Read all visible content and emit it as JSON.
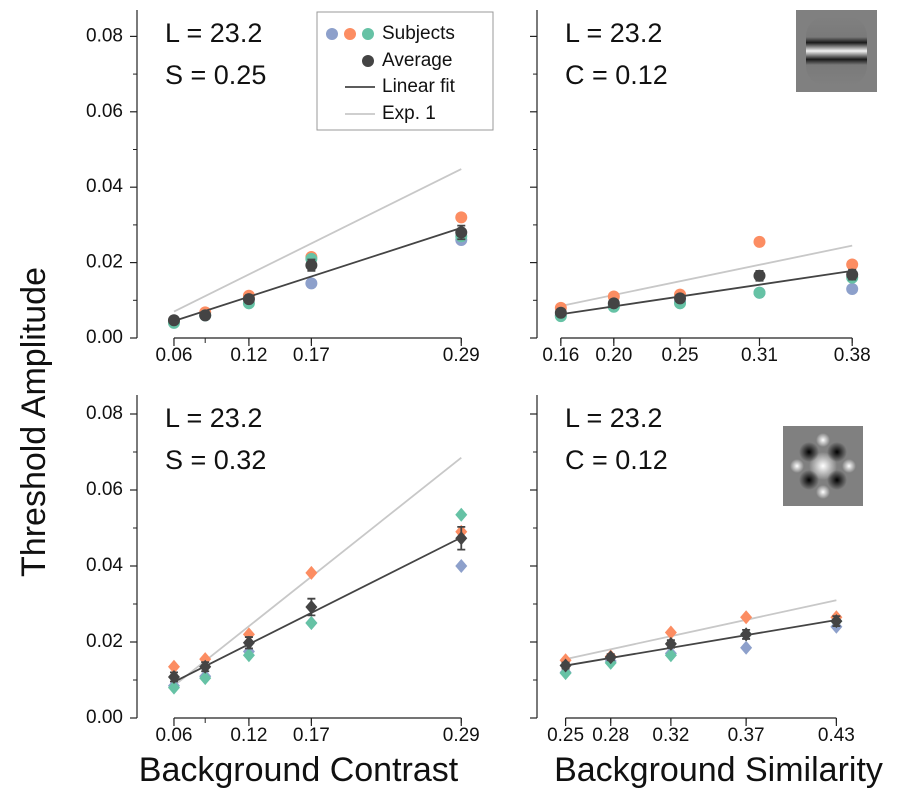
{
  "chart_data": [
    {
      "type": "scatter",
      "marker": "circle",
      "annotations": [
        "L = 23.2",
        "S = 0.25"
      ],
      "y_label": "Threshold Amplitude",
      "x": [
        0.06,
        0.085,
        0.12,
        0.17,
        0.29
      ],
      "xlim": [
        0.0304,
        0.313
      ],
      "xticks": [
        0.06,
        0.12,
        0.17,
        0.29
      ],
      "ylim": [
        0,
        0.087
      ],
      "yticks": [
        {
          "value": 0,
          "label": "0.00"
        },
        0.02,
        0.04,
        0.06,
        0.08
      ],
      "ytick_labels": true,
      "series": [
        {
          "name": "Subjects",
          "color": "#8da0cb",
          "values": [
            0.0045,
            0.006,
            0.0105,
            0.0145,
            0.026
          ]
        },
        {
          "color": "#fc8d62",
          "values": [
            0.0045,
            0.0068,
            0.0112,
            0.0215,
            0.032
          ]
        },
        {
          "color": "#66c2a5",
          "values": [
            0.004,
            0.006,
            0.0092,
            0.021,
            0.027
          ]
        },
        {
          "name": "Average",
          "color": "#444444",
          "values": [
            0.0047,
            0.006,
            0.0103,
            0.0193,
            0.028
          ],
          "errors": [
            0.0006,
            0.0006,
            0.0008,
            0.0015,
            0.0018
          ]
        }
      ],
      "lines": [
        {
          "name": "Linear fit",
          "color": "#444444",
          "x": [
            0.06,
            0.29
          ],
          "values": [
            0.0045,
            0.0292
          ]
        },
        {
          "name": "Exp. 1",
          "color": "#c8c8c8",
          "x": [
            0.06,
            0.29
          ],
          "values": [
            0.007,
            0.0448
          ]
        }
      ]
    },
    {
      "type": "scatter",
      "marker": "circle",
      "annotations": [
        "L = 23.2",
        "C = 0.12"
      ],
      "x": [
        0.16,
        0.2,
        0.25,
        0.31,
        0.38
      ],
      "xlim": [
        0.142,
        0.401
      ],
      "xticks": [
        0.16,
        {
          "value": 0.2,
          "label": "0.20"
        },
        0.25,
        0.31,
        0.38
      ],
      "ylim": [
        0,
        0.087
      ],
      "yticks": [
        0,
        0.02,
        0.04,
        0.06,
        0.08
      ],
      "ytick_labels": false,
      "series": [
        {
          "color": "#8da0cb",
          "values": [
            0.006,
            0.0085,
            0.0095,
            0.012,
            0.013
          ]
        },
        {
          "color": "#fc8d62",
          "values": [
            0.008,
            0.011,
            0.0115,
            0.0255,
            0.0195
          ]
        },
        {
          "color": "#66c2a5",
          "values": [
            0.0058,
            0.0083,
            0.0092,
            0.012,
            0.016
          ]
        },
        {
          "color": "#444444",
          "values": [
            0.0067,
            0.0092,
            0.0105,
            0.0165,
            0.0168
          ],
          "errors": [
            0.0006,
            0.0007,
            0.0008,
            0.0013,
            0.0013
          ]
        }
      ],
      "lines": [
        {
          "color": "#444444",
          "x": [
            0.16,
            0.38
          ],
          "values": [
            0.0063,
            0.0178
          ]
        },
        {
          "color": "#c8c8c8",
          "x": [
            0.16,
            0.38
          ],
          "values": [
            0.0085,
            0.0245
          ]
        }
      ]
    },
    {
      "type": "scatter",
      "marker": "diamond",
      "annotations": [
        "L = 23.2",
        "S = 0.32"
      ],
      "x_label": "Background Contrast",
      "x": [
        0.06,
        0.085,
        0.12,
        0.17,
        0.29
      ],
      "xlim": [
        0.0304,
        0.313
      ],
      "xticks": [
        0.06,
        0.12,
        0.17,
        0.29
      ],
      "ylim": [
        0,
        0.085
      ],
      "yticks": [
        {
          "value": 0,
          "label": "0.00"
        },
        0.02,
        0.04,
        0.06,
        0.08
      ],
      "ytick_labels": true,
      "series": [
        {
          "color": "#8da0cb",
          "values": [
            0.0085,
            0.011,
            0.0175,
            0.025,
            0.04
          ]
        },
        {
          "color": "#fc8d62",
          "values": [
            0.0135,
            0.0155,
            0.022,
            0.0382,
            0.049
          ]
        },
        {
          "color": "#66c2a5",
          "values": [
            0.008,
            0.0105,
            0.0165,
            0.025,
            0.0535
          ]
        },
        {
          "color": "#444444",
          "values": [
            0.0108,
            0.0135,
            0.0198,
            0.0292,
            0.0473
          ],
          "errors": [
            0.0012,
            0.0012,
            0.0015,
            0.0022,
            0.003
          ]
        }
      ],
      "lines": [
        {
          "color": "#444444",
          "x": [
            0.06,
            0.29
          ],
          "values": [
            0.0095,
            0.0475
          ]
        },
        {
          "color": "#c8c8c8",
          "x": [
            0.06,
            0.29
          ],
          "values": [
            0.0085,
            0.0685
          ]
        }
      ]
    },
    {
      "type": "scatter",
      "marker": "diamond",
      "annotations": [
        "L = 23.2",
        "C = 0.12"
      ],
      "x_label": "Background Similarity",
      "x": [
        0.25,
        0.28,
        0.32,
        0.37,
        0.43
      ],
      "xlim": [
        0.231,
        0.459
      ],
      "xticks": [
        0.25,
        0.28,
        0.32,
        0.37,
        0.43
      ],
      "ylim": [
        0,
        0.085
      ],
      "yticks": [
        0,
        0.02,
        0.04,
        0.06,
        0.08
      ],
      "ytick_labels": false,
      "series": [
        {
          "color": "#8da0cb",
          "values": [
            0.012,
            0.015,
            0.017,
            0.0185,
            0.024
          ]
        },
        {
          "color": "#fc8d62",
          "values": [
            0.0152,
            0.0162,
            0.0225,
            0.0265,
            0.0265
          ]
        },
        {
          "color": "#66c2a5",
          "values": [
            0.0118,
            0.0145,
            0.0165,
            0.022,
            0.0255
          ]
        },
        {
          "color": "#444444",
          "values": [
            0.0138,
            0.016,
            0.0195,
            0.022,
            0.0255
          ],
          "errors": [
            0.0008,
            0.0008,
            0.001,
            0.0012,
            0.0013
          ]
        }
      ],
      "lines": [
        {
          "color": "#444444",
          "x": [
            0.25,
            0.43
          ],
          "values": [
            0.0138,
            0.0258
          ]
        },
        {
          "color": "#c8c8c8",
          "x": [
            0.25,
            0.43
          ],
          "values": [
            0.0155,
            0.031
          ]
        }
      ]
    }
  ]
}
